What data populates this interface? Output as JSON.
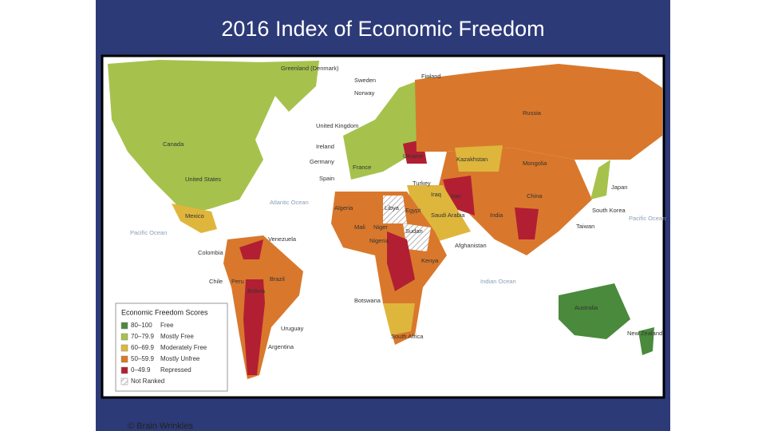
{
  "title": "2016 Index of Economic Freedom",
  "map": {
    "labels": [
      "Greenland (Denmark)",
      "Sweden",
      "Finland",
      "Norway",
      "Russia",
      "United Kingdom",
      "Ireland",
      "Ukraine",
      "Kazakhstan",
      "Germany",
      "France",
      "Mongolia",
      "Spain",
      "Turkey",
      "Iraq",
      "Iran",
      "China",
      "Japan",
      "Canada",
      "United States",
      "Atlantic Ocean",
      "Algeria",
      "Libya",
      "Egypt",
      "Saudi Arabia",
      "Mexico",
      "Mali",
      "Niger",
      "India",
      "South Korea",
      "Taiwan",
      "Pacific Ocean",
      "Pacific Ocean",
      "Venezuela",
      "Nigeria",
      "Sudan",
      "Afghanistan",
      "Colombia",
      "Kenya",
      "Chile",
      "Peru",
      "Brazil",
      "Indian Ocean",
      "Bolivia",
      "Botswana",
      "Australia",
      "Uruguay",
      "New Zealand",
      "South Africa",
      "Argentina"
    ]
  },
  "legend": {
    "title": "Economic Freedom Scores",
    "items": [
      {
        "range": "80–100",
        "label": "Free",
        "color": "#4a8a3c"
      },
      {
        "range": "70–79.9",
        "label": "Mostly Free",
        "color": "#a6c24c"
      },
      {
        "range": "60–69.9",
        "label": "Moderately Free",
        "color": "#dfb63c"
      },
      {
        "range": "50–59.9",
        "label": "Mostly Unfree",
        "color": "#d9782c"
      },
      {
        "range": "0–49.9",
        "label": "Repressed",
        "color": "#b21f33"
      },
      {
        "range": "",
        "label": "Not Ranked",
        "color": "hatch"
      }
    ]
  },
  "footer": "© Brain Wrinkles"
}
